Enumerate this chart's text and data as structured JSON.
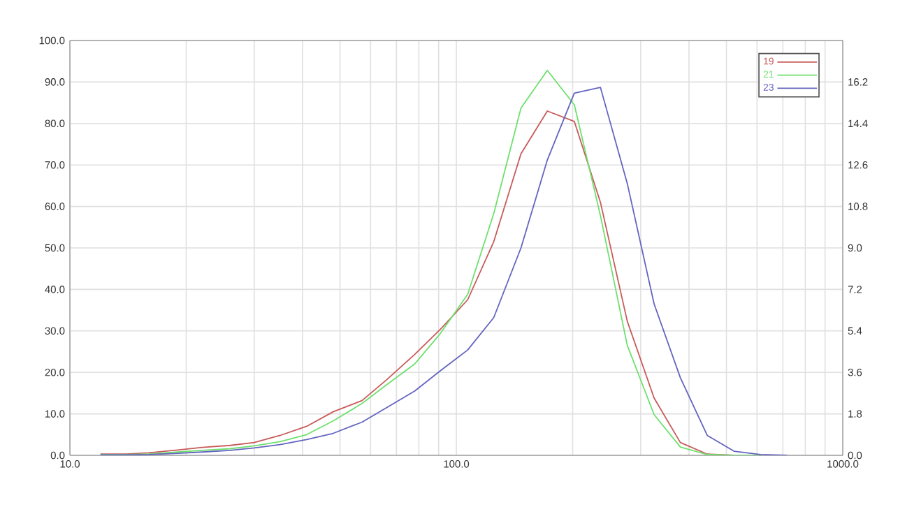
{
  "chart_data": {
    "type": "line",
    "log": "x",
    "x": [
      12,
      14,
      16,
      19,
      22,
      26,
      30,
      35,
      41,
      48,
      57,
      66,
      78,
      91,
      107,
      125,
      147,
      172,
      202,
      236,
      277,
      325,
      380,
      446,
      523,
      613,
      718
    ],
    "series": [
      {
        "name": "19",
        "color": "#c85a5a",
        "values": [
          0.3,
          0.3,
          0.6,
          1.3,
          1.9,
          2.4,
          3.1,
          4.8,
          7.0,
          10.5,
          13.2,
          18.2,
          24.3,
          30.4,
          37.5,
          51.5,
          72.7,
          83.0,
          80.5,
          61.0,
          32.3,
          13.8,
          3.1,
          0.3,
          0,
          null,
          null
        ]
      },
      {
        "name": "21",
        "color": "#6ee06e",
        "values": [
          0.2,
          0.2,
          0.3,
          0.8,
          1.2,
          1.6,
          2.3,
          3.3,
          5.0,
          8.3,
          12.5,
          17.0,
          22.0,
          29.4,
          38.8,
          58.3,
          83.7,
          92.8,
          84.5,
          57.8,
          26.5,
          9.8,
          2.0,
          0.2,
          0,
          0,
          0
        ]
      },
      {
        "name": "23",
        "color": "#6464c0",
        "values": [
          0.1,
          0.1,
          0.2,
          0.5,
          0.8,
          1.2,
          1.8,
          2.6,
          3.8,
          5.3,
          8.0,
          11.5,
          15.5,
          20.4,
          25.4,
          33.2,
          50.0,
          71.2,
          87.3,
          88.7,
          65.5,
          36.5,
          18.7,
          4.8,
          1.0,
          0.2,
          0
        ]
      }
    ],
    "xlim": [
      10,
      1000
    ],
    "xticks": [
      {
        "value": 10,
        "label": "10.0"
      },
      {
        "value": 100,
        "label": "100.0"
      },
      {
        "value": 1000,
        "label": "1000.0"
      }
    ],
    "ylim": [
      0,
      100
    ],
    "yticks": [
      {
        "value": 0,
        "label": "0.0"
      },
      {
        "value": 10,
        "label": "10.0"
      },
      {
        "value": 20,
        "label": "20.0"
      },
      {
        "value": 30,
        "label": "30.0"
      },
      {
        "value": 40,
        "label": "40.0"
      },
      {
        "value": 50,
        "label": "50.0"
      },
      {
        "value": 60,
        "label": "60.0"
      },
      {
        "value": 70,
        "label": "70.0"
      },
      {
        "value": 80,
        "label": "80.0"
      },
      {
        "value": 90,
        "label": "90.0"
      },
      {
        "value": 100,
        "label": "100.0"
      }
    ],
    "y2lim": [
      0,
      18
    ],
    "y2ticks": [
      {
        "value": 0,
        "label": "0.0"
      },
      {
        "value": 1.8,
        "label": "1.8"
      },
      {
        "value": 3.6,
        "label": "3.6"
      },
      {
        "value": 5.4,
        "label": "5.4"
      },
      {
        "value": 7.2,
        "label": "7.2"
      },
      {
        "value": 9.0,
        "label": "9.0"
      },
      {
        "value": 10.8,
        "label": "10.8"
      },
      {
        "value": 12.6,
        "label": "12.6"
      },
      {
        "value": 14.4,
        "label": "14.4"
      },
      {
        "value": 16.2,
        "label": "16.2"
      }
    ],
    "grid": true,
    "legend": "top right",
    "marker": "none",
    "line_style": "solid"
  }
}
